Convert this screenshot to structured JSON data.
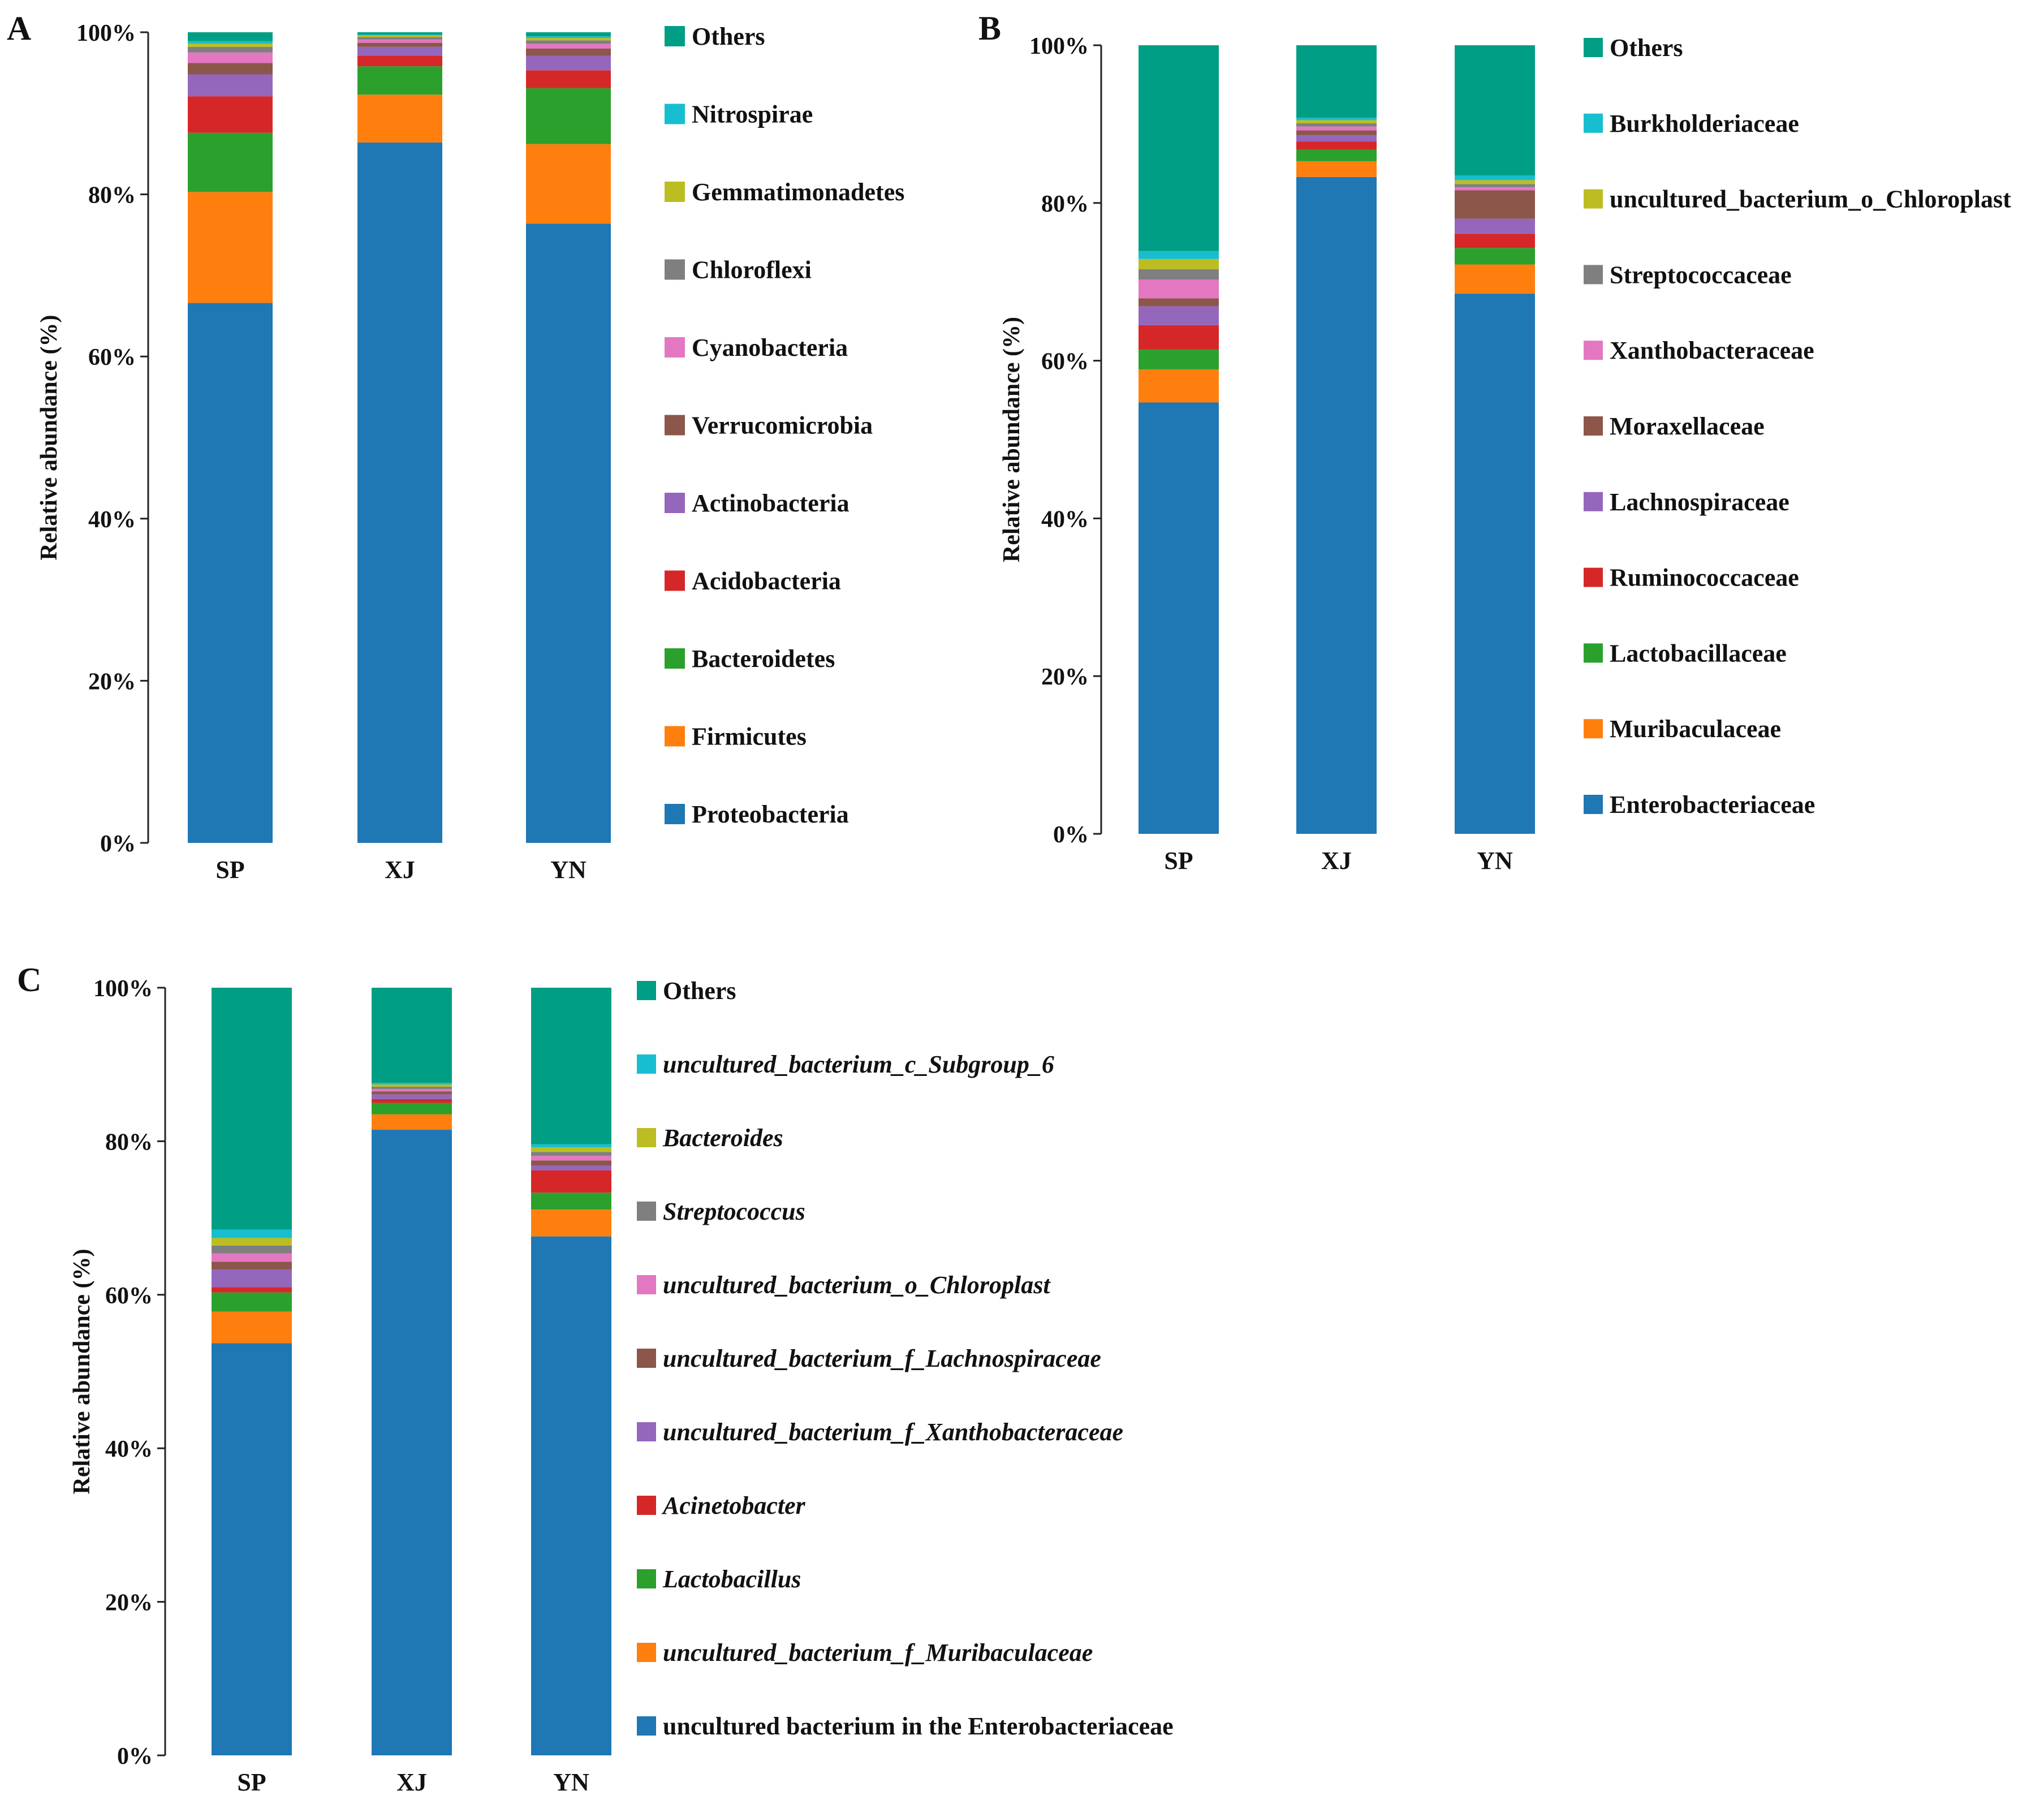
{
  "chart_data": [
    {
      "panel": "A",
      "type": "stacked-bar",
      "title": "",
      "ylabel": "Relative abundance (%)",
      "yticks": [
        "0%",
        "20%",
        "40%",
        "60%",
        "80%",
        "100%"
      ],
      "ylim": [
        0,
        100
      ],
      "categories": [
        "SP",
        "XJ",
        "YN"
      ],
      "italic_legend": false,
      "series": [
        {
          "name": "Proteobacteria",
          "color": "#1f77b4",
          "values": [
            66.6,
            86.4,
            76.4
          ]
        },
        {
          "name": "Firmicutes",
          "color": "#ff7f0e",
          "values": [
            13.7,
            5.9,
            9.8
          ]
        },
        {
          "name": "Bacteroidetes",
          "color": "#2ca02c",
          "values": [
            7.3,
            3.5,
            6.9
          ]
        },
        {
          "name": "Acidobacteria",
          "color": "#d62728",
          "values": [
            4.5,
            1.3,
            2.2
          ]
        },
        {
          "name": "Actinobacteria",
          "color": "#9467bd",
          "values": [
            2.7,
            1.1,
            1.8
          ]
        },
        {
          "name": "Verrucomicrobia",
          "color": "#8c564b",
          "values": [
            1.4,
            0.5,
            0.9
          ]
        },
        {
          "name": "Cyanobacteria",
          "color": "#e377c2",
          "values": [
            1.3,
            0.4,
            0.6
          ]
        },
        {
          "name": "Chloroflexi",
          "color": "#7f7f7f",
          "values": [
            0.7,
            0.3,
            0.4
          ]
        },
        {
          "name": "Gemmatimonadetes",
          "color": "#bcbd22",
          "values": [
            0.4,
            0.2,
            0.3
          ]
        },
        {
          "name": "Nitrospirae",
          "color": "#17becf",
          "values": [
            0.3,
            0.1,
            0.2
          ]
        },
        {
          "name": "Others",
          "color": "#009e84",
          "values": [
            1.1,
            0.3,
            0.5
          ]
        }
      ]
    },
    {
      "panel": "B",
      "type": "stacked-bar",
      "title": "",
      "ylabel": "Relative abundance (%)",
      "yticks": [
        "0%",
        "20%",
        "40%",
        "60%",
        "80%",
        "100%"
      ],
      "ylim": [
        0,
        100
      ],
      "categories": [
        "SP",
        "XJ",
        "YN"
      ],
      "italic_legend": false,
      "series": [
        {
          "name": "Enterobacteriaceae",
          "color": "#1f77b4",
          "values": [
            54.7,
            83.3,
            68.5
          ]
        },
        {
          "name": "Muribaculaceae",
          "color": "#ff7f0e",
          "values": [
            4.2,
            2.0,
            3.7
          ]
        },
        {
          "name": "Lactobacillaceae",
          "color": "#2ca02c",
          "values": [
            2.5,
            1.5,
            2.1
          ]
        },
        {
          "name": "Ruminococcaceae",
          "color": "#d62728",
          "values": [
            3.1,
            1.0,
            1.8
          ]
        },
        {
          "name": "Lachnospiraceae",
          "color": "#9467bd",
          "values": [
            2.4,
            0.8,
            1.9
          ]
        },
        {
          "name": "Moraxellaceae",
          "color": "#8c564b",
          "values": [
            1.0,
            0.6,
            3.6
          ]
        },
        {
          "name": "Xanthobacteraceae",
          "color": "#e377c2",
          "values": [
            2.4,
            0.5,
            0.4
          ]
        },
        {
          "name": "Streptococcaceae",
          "color": "#7f7f7f",
          "values": [
            1.3,
            0.4,
            0.4
          ]
        },
        {
          "name": "uncultured_bacterium_o_Chloroplast",
          "color": "#bcbd22",
          "values": [
            1.3,
            0.4,
            0.5
          ]
        },
        {
          "name": "Burkholderiaceae",
          "color": "#17becf",
          "values": [
            1.0,
            0.3,
            0.6
          ]
        },
        {
          "name": "Others",
          "color": "#009e84",
          "values": [
            26.1,
            9.2,
            16.5
          ]
        }
      ]
    },
    {
      "panel": "C",
      "type": "stacked-bar",
      "title": "",
      "ylabel": "Relative abundance (%)",
      "yticks": [
        "0%",
        "20%",
        "40%",
        "60%",
        "80%",
        "100%"
      ],
      "ylim": [
        0,
        100
      ],
      "categories": [
        "SP",
        "XJ",
        "YN"
      ],
      "italic_legend": true,
      "series": [
        {
          "name": "uncultured bacterium in the Enterobacteriaceae",
          "color": "#1f77b4",
          "values": [
            53.7,
            81.5,
            67.6
          ],
          "italic": false
        },
        {
          "name": "uncultured_bacterium_f_Muribaculaceae",
          "color": "#ff7f0e",
          "values": [
            4.1,
            2.0,
            3.5
          ],
          "italic": true
        },
        {
          "name": "Lactobacillus",
          "color": "#2ca02c",
          "values": [
            2.5,
            1.5,
            2.2
          ],
          "italic": true
        },
        {
          "name": "Acinetobacter",
          "color": "#d62728",
          "values": [
            0.7,
            0.5,
            2.9
          ],
          "italic": true
        },
        {
          "name": "uncultured_bacterium_f_Xanthobacteraceae",
          "color": "#9467bd",
          "values": [
            2.3,
            0.6,
            0.6
          ],
          "italic": true
        },
        {
          "name": "uncultured_bacterium_f_Lachnospiraceae",
          "color": "#8c564b",
          "values": [
            1.0,
            0.4,
            0.7
          ],
          "italic": true
        },
        {
          "name": "uncultured_bacterium_o_Chloroplast",
          "color": "#e377c2",
          "values": [
            1.1,
            0.3,
            0.6
          ],
          "italic": true
        },
        {
          "name": "Streptococcus",
          "color": "#7f7f7f",
          "values": [
            1.0,
            0.3,
            0.5
          ],
          "italic": true
        },
        {
          "name": "Bacteroides",
          "color": "#bcbd22",
          "values": [
            1.0,
            0.3,
            0.6
          ],
          "italic": true
        },
        {
          "name": "uncultured_bacterium_c_Subgroup_6",
          "color": "#17becf",
          "values": [
            1.1,
            0.2,
            0.4
          ],
          "italic": true
        },
        {
          "name": "Others",
          "color": "#009e84",
          "values": [
            31.5,
            12.4,
            20.4
          ],
          "italic": false
        }
      ]
    }
  ]
}
